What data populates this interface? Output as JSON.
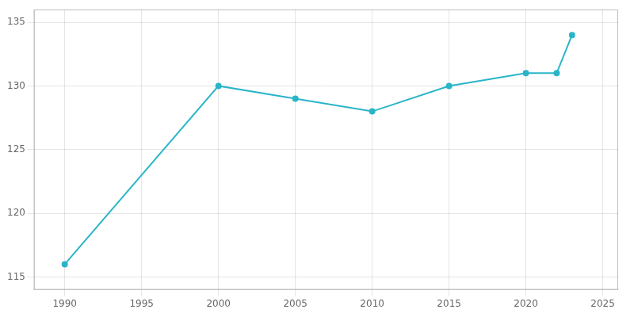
{
  "chart_data": {
    "type": "line",
    "x": [
      1990,
      2000,
      2005,
      2010,
      2015,
      2020,
      2022,
      2023
    ],
    "values": [
      116,
      130,
      129,
      128,
      130,
      131,
      131,
      134
    ],
    "color": "#2ab5c8",
    "marker": "circle",
    "xlim": [
      1988,
      2026
    ],
    "ylim": [
      114,
      136
    ],
    "xticks": [
      1990,
      1995,
      2000,
      2005,
      2010,
      2015,
      2020,
      2025
    ],
    "yticks": [
      115,
      120,
      125,
      130,
      135
    ],
    "grid": true
  }
}
